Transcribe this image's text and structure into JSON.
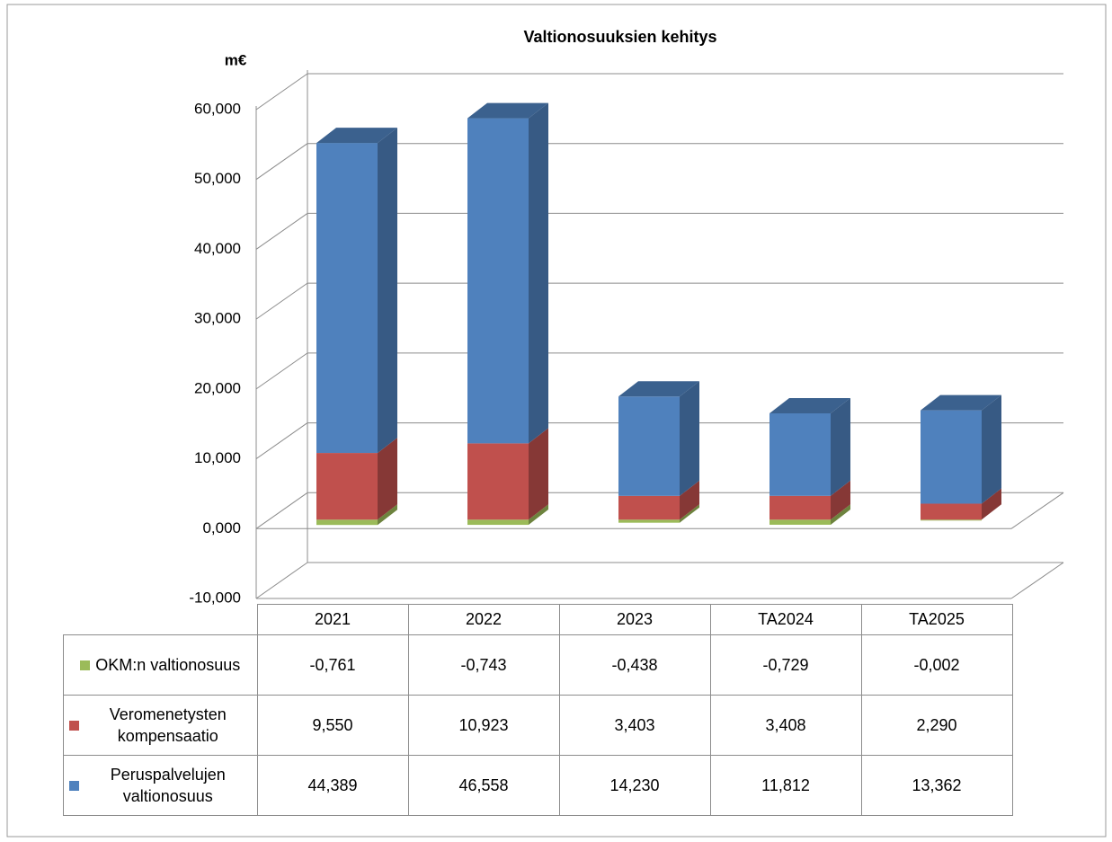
{
  "chart_data": {
    "type": "bar",
    "stacked": true,
    "three_d": true,
    "title": "Valtionosuuksien kehitys",
    "ylabel": "m€",
    "categories": [
      "2021",
      "2022",
      "2023",
      "TA2024",
      "TA2025"
    ],
    "series": [
      {
        "name": "OKM:n valtionosuus",
        "color": "#9bbb59",
        "values": [
          -0.761,
          -0.743,
          -0.438,
          -0.729,
          -0.002
        ],
        "value_labels": [
          "-0,761",
          "-0,743",
          "-0,438",
          "-0,729",
          "-0,002"
        ]
      },
      {
        "name": "Veromenetysten kompensaatio",
        "color": "#c0504d",
        "values": [
          9.55,
          10.923,
          3.403,
          3.408,
          2.29
        ],
        "value_labels": [
          "9,550",
          "10,923",
          "3,403",
          "3,408",
          "2,290"
        ]
      },
      {
        "name": "Peruspalvelujen valtionosuus",
        "color": "#4f81bd",
        "values": [
          44.389,
          46.558,
          14.23,
          11.812,
          13.362
        ],
        "value_labels": [
          "44,389",
          "46,558",
          "14,230",
          "11,812",
          "13,362"
        ]
      }
    ],
    "ylim": [
      -10,
      60
    ],
    "yticks": [
      {
        "value": -10,
        "label": "-10,000"
      },
      {
        "value": 0,
        "label": "0,000"
      },
      {
        "value": 10,
        "label": "10,000"
      },
      {
        "value": 20,
        "label": "20,000"
      },
      {
        "value": 30,
        "label": "30,000"
      },
      {
        "value": 40,
        "label": "40,000"
      },
      {
        "value": 50,
        "label": "50,000"
      },
      {
        "value": 60,
        "label": "60,000"
      }
    ],
    "grid": true
  }
}
